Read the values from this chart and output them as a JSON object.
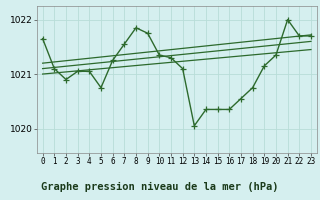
{
  "background_color": "#d5efef",
  "title_band_color": "#5faa6f",
  "grid_color": "#b8ddd8",
  "line_color": "#2d6a2d",
  "marker_color": "#2d6a2d",
  "title": "Graphe pression niveau de la mer (hPa)",
  "xlim": [
    -0.5,
    23.5
  ],
  "ylim": [
    1019.55,
    1022.25
  ],
  "yticks": [
    1020,
    1021,
    1022
  ],
  "xticks": [
    0,
    1,
    2,
    3,
    4,
    5,
    6,
    7,
    8,
    9,
    10,
    11,
    12,
    13,
    14,
    15,
    16,
    17,
    18,
    19,
    20,
    21,
    22,
    23
  ],
  "series1_x": [
    0,
    1,
    2,
    3,
    4,
    5,
    6,
    7,
    8,
    9,
    10,
    11,
    12,
    13,
    14,
    15,
    16,
    17,
    18,
    19,
    20,
    21,
    22,
    23
  ],
  "series1_y": [
    1021.65,
    1021.1,
    1020.9,
    1021.05,
    1021.05,
    1020.75,
    1021.25,
    1021.55,
    1021.85,
    1021.75,
    1021.35,
    1021.3,
    1021.1,
    1020.05,
    1020.35,
    1020.35,
    1020.35,
    1020.55,
    1020.75,
    1021.15,
    1021.35,
    1022.0,
    1021.7,
    1021.7
  ],
  "series2_x": [
    0,
    23
  ],
  "series2_y": [
    1021.0,
    1021.45
  ],
  "series3_x": [
    0,
    23
  ],
  "series3_y": [
    1021.1,
    1021.6
  ],
  "series4_x": [
    0,
    23
  ],
  "series4_y": [
    1021.2,
    1021.72
  ],
  "marker_size": 4,
  "line_width": 1.0,
  "title_fontsize": 7.5,
  "tick_fontsize": 5.5,
  "ytick_fontsize": 6.5
}
